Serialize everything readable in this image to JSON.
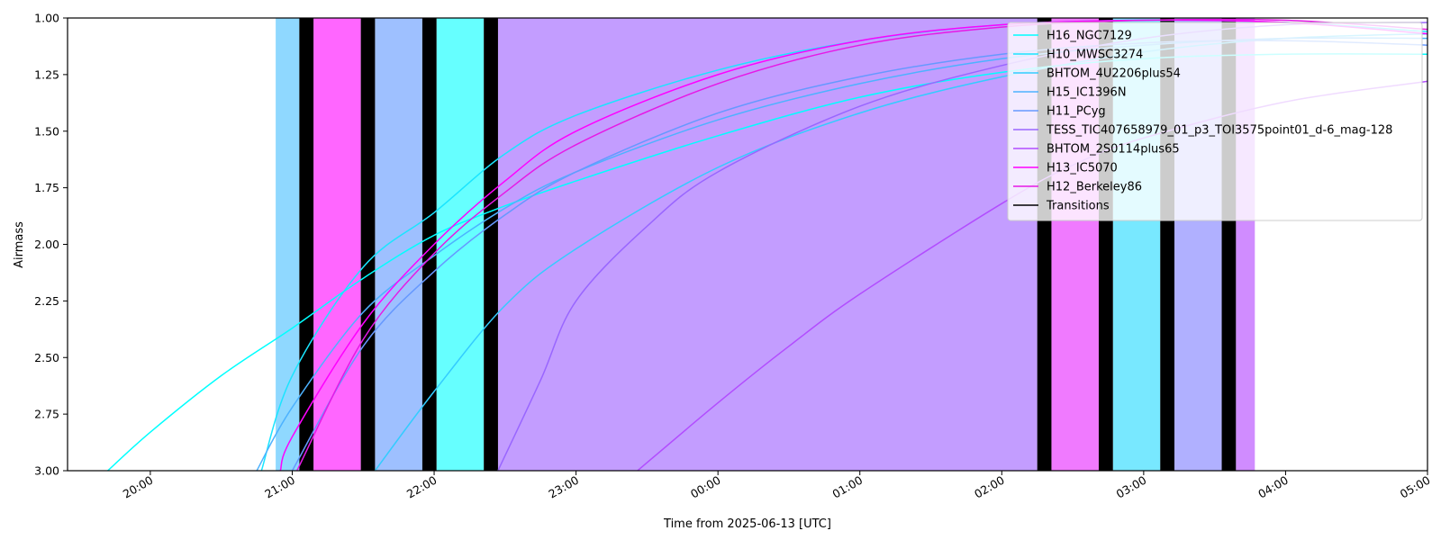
{
  "chart_data": {
    "type": "line",
    "xlabel": "Time from 2025-06-13 [UTC]",
    "ylabel": "Airmass",
    "ylim": [
      3.0,
      1.0
    ],
    "xlim": [
      "2025-06-13 19:25",
      "2025-06-14 05:00"
    ],
    "y_ticks": [
      "1.00",
      "1.25",
      "1.50",
      "1.75",
      "2.00",
      "2.25",
      "2.50",
      "2.75",
      "3.00"
    ],
    "x_ticks": [
      {
        "time": "2025-06-13 20:00",
        "label": "20:00"
      },
      {
        "time": "2025-06-13 21:00",
        "label": "21:00"
      },
      {
        "time": "2025-06-13 22:00",
        "label": "22:00"
      },
      {
        "time": "2025-06-13 23:00",
        "label": "23:00"
      },
      {
        "time": "2025-06-14 00:00",
        "label": "00:00"
      },
      {
        "time": "2025-06-14 01:00",
        "label": "01:00"
      },
      {
        "time": "2025-06-14 02:00",
        "label": "02:00"
      },
      {
        "time": "2025-06-14 03:00",
        "label": "03:00"
      },
      {
        "time": "2025-06-14 04:00",
        "label": "04:00"
      },
      {
        "time": "2025-06-14 05:00",
        "label": "05:00"
      }
    ],
    "grid": false,
    "legend_position": "top-right",
    "observation_blocks": [
      {
        "start": "2025-06-13 20:53",
        "end": "2025-06-13 21:03",
        "color": "#8fd8ff"
      },
      {
        "start": "2025-06-13 21:09",
        "end": "2025-06-13 21:29",
        "color": "#ff66ff"
      },
      {
        "start": "2025-06-13 21:35",
        "end": "2025-06-13 21:55",
        "color": "#9ec0ff"
      },
      {
        "start": "2025-06-13 22:01",
        "end": "2025-06-13 22:21",
        "color": "#66ffff"
      },
      {
        "start": "2025-06-13 22:27",
        "end": "2025-06-14 02:15",
        "color": "#c39dff"
      },
      {
        "start": "2025-06-14 02:21",
        "end": "2025-06-14 02:41",
        "color": "#f07aff"
      },
      {
        "start": "2025-06-14 02:47",
        "end": "2025-06-14 03:07",
        "color": "#78e8ff"
      },
      {
        "start": "2025-06-14 03:13",
        "end": "2025-06-14 03:33",
        "color": "#b0b0ff"
      },
      {
        "start": "2025-06-14 03:39",
        "end": "2025-06-14 03:47",
        "color": "#d08cff"
      }
    ],
    "transitions": [
      {
        "start": "2025-06-13 21:03",
        "end": "2025-06-13 21:09"
      },
      {
        "start": "2025-06-13 21:29",
        "end": "2025-06-13 21:35"
      },
      {
        "start": "2025-06-13 21:55",
        "end": "2025-06-13 22:01"
      },
      {
        "start": "2025-06-13 22:21",
        "end": "2025-06-13 22:27"
      },
      {
        "start": "2025-06-14 02:15",
        "end": "2025-06-14 02:21"
      },
      {
        "start": "2025-06-14 02:41",
        "end": "2025-06-14 02:47"
      },
      {
        "start": "2025-06-14 03:07",
        "end": "2025-06-14 03:13"
      },
      {
        "start": "2025-06-14 03:33",
        "end": "2025-06-14 03:39"
      }
    ],
    "series": [
      {
        "name": "H16_NGC7129",
        "color": "#00ffff",
        "x": [
          "2025-06-13 19:42",
          "2025-06-13 20:00",
          "2025-06-13 20:30",
          "2025-06-13 21:00",
          "2025-06-13 21:30",
          "2025-06-13 22:00",
          "2025-06-13 22:30",
          "2025-06-13 23:00",
          "2025-06-14 00:00",
          "2025-06-14 01:00",
          "2025-06-14 02:00",
          "2025-06-14 03:00",
          "2025-06-14 04:00",
          "2025-06-14 05:00"
        ],
        "y": [
          3.0,
          2.83,
          2.58,
          2.37,
          2.15,
          1.96,
          1.83,
          1.72,
          1.52,
          1.35,
          1.24,
          1.18,
          1.16,
          1.16
        ]
      },
      {
        "name": "H10_MWSC3274",
        "color": "#1ae5ff",
        "x": [
          "2025-06-13 20:47",
          "2025-06-13 21:00",
          "2025-06-13 21:30",
          "2025-06-13 22:00",
          "2025-06-13 22:30",
          "2025-06-13 23:00",
          "2025-06-14 00:00",
          "2025-06-14 01:00",
          "2025-06-14 02:00",
          "2025-06-14 03:00",
          "2025-06-14 04:00",
          "2025-06-14 05:00"
        ],
        "y": [
          3.0,
          2.58,
          2.1,
          1.86,
          1.6,
          1.43,
          1.23,
          1.1,
          1.03,
          1.01,
          1.02,
          1.06
        ]
      },
      {
        "name": "BHTOM_4U2206plus54",
        "color": "#33ccff",
        "x": [
          "2025-06-13 21:35",
          "2025-06-13 22:00",
          "2025-06-13 22:30",
          "2025-06-13 23:00",
          "2025-06-14 00:00",
          "2025-06-14 01:00",
          "2025-06-14 02:00",
          "2025-06-14 03:00",
          "2025-06-14 04:00",
          "2025-06-14 05:00"
        ],
        "y": [
          3.0,
          2.65,
          2.27,
          2.02,
          1.66,
          1.42,
          1.26,
          1.15,
          1.09,
          1.07
        ]
      },
      {
        "name": "H15_IC1396N",
        "color": "#4db2ff",
        "x": [
          "2025-06-13 20:45",
          "2025-06-13 21:00",
          "2025-06-13 21:30",
          "2025-06-13 22:00",
          "2025-06-13 22:30",
          "2025-06-13 23:00",
          "2025-06-14 00:00",
          "2025-06-14 01:00",
          "2025-06-14 02:00",
          "2025-06-14 03:00",
          "2025-06-14 04:00",
          "2025-06-14 05:00"
        ],
        "y": [
          3.0,
          2.72,
          2.3,
          2.05,
          1.84,
          1.68,
          1.45,
          1.29,
          1.18,
          1.12,
          1.09,
          1.09
        ]
      },
      {
        "name": "H11_PCyg",
        "color": "#6699ff",
        "x": [
          "2025-06-13 21:00",
          "2025-06-13 21:30",
          "2025-06-13 22:00",
          "2025-06-13 22:30",
          "2025-06-13 23:00",
          "2025-06-14 00:00",
          "2025-06-14 01:00",
          "2025-06-14 02:00",
          "2025-06-14 03:00",
          "2025-06-14 04:00",
          "2025-06-14 05:00"
        ],
        "y": [
          3.0,
          2.45,
          2.12,
          1.87,
          1.68,
          1.42,
          1.26,
          1.16,
          1.11,
          1.1,
          1.12
        ]
      },
      {
        "name": "TESS_TIC407658979_01_p3_TOI3575point01_d-6_mag-128",
        "color": "#9966ff",
        "x": [
          "2025-06-13 22:27",
          "2025-06-13 22:45",
          "2025-06-13 23:00",
          "2025-06-13 23:30",
          "2025-06-14 00:00",
          "2025-06-14 01:00",
          "2025-06-14 02:00",
          "2025-06-14 03:00",
          "2025-06-14 04:00",
          "2025-06-14 05:00"
        ],
        "y": [
          3.0,
          2.6,
          2.25,
          1.92,
          1.68,
          1.39,
          1.21,
          1.09,
          1.03,
          1.02
        ]
      },
      {
        "name": "BHTOM_2S0114plus65",
        "color": "#b24dff",
        "x": [
          "2025-06-13 23:26",
          "2025-06-14 00:00",
          "2025-06-14 00:30",
          "2025-06-14 01:00",
          "2025-06-14 02:00",
          "2025-06-14 02:30",
          "2025-06-14 03:00",
          "2025-06-14 04:00",
          "2025-06-14 05:00"
        ],
        "y": [
          3.0,
          2.7,
          2.45,
          2.22,
          1.82,
          1.65,
          1.53,
          1.37,
          1.28
        ]
      },
      {
        "name": "H13_IC5070",
        "color": "#ff00ff",
        "x": [
          "2025-06-13 20:55",
          "2025-06-13 21:00",
          "2025-06-13 21:30",
          "2025-06-13 22:00",
          "2025-06-13 22:30",
          "2025-06-13 23:00",
          "2025-06-14 00:00",
          "2025-06-14 01:00",
          "2025-06-14 02:00",
          "2025-06-14 03:00",
          "2025-06-14 04:00",
          "2025-06-14 05:00"
        ],
        "y": [
          3.0,
          2.85,
          2.35,
          2.0,
          1.72,
          1.5,
          1.25,
          1.1,
          1.03,
          1.01,
          1.02,
          1.07
        ]
      },
      {
        "name": "H12_Berkeley86",
        "color": "#e619e6",
        "x": [
          "2025-06-13 21:02",
          "2025-06-13 21:30",
          "2025-06-13 22:00",
          "2025-06-13 22:30",
          "2025-06-13 23:00",
          "2025-06-14 00:00",
          "2025-06-14 01:00",
          "2025-06-14 02:00",
          "2025-06-14 03:00",
          "2025-06-14 04:00",
          "2025-06-14 05:00"
        ],
        "y": [
          3.0,
          2.42,
          2.04,
          1.77,
          1.56,
          1.29,
          1.12,
          1.04,
          1.01,
          1.01,
          1.05
        ]
      }
    ],
    "legend": [
      {
        "label": "H16_NGC7129",
        "color": "#00ffff"
      },
      {
        "label": "H10_MWSC3274",
        "color": "#1ae5ff"
      },
      {
        "label": "BHTOM_4U2206plus54",
        "color": "#33ccff"
      },
      {
        "label": "H15_IC1396N",
        "color": "#4db2ff"
      },
      {
        "label": "H11_PCyg",
        "color": "#6699ff"
      },
      {
        "label": "TESS_TIC407658979_01_p3_TOI3575point01_d-6_mag-128",
        "color": "#9966ff"
      },
      {
        "label": "BHTOM_2S0114plus65",
        "color": "#b24dff"
      },
      {
        "label": "H13_IC5070",
        "color": "#ff00ff"
      },
      {
        "label": "H12_Berkeley86",
        "color": "#e619e6"
      },
      {
        "label": "Transitions",
        "color": "#000000"
      }
    ]
  }
}
